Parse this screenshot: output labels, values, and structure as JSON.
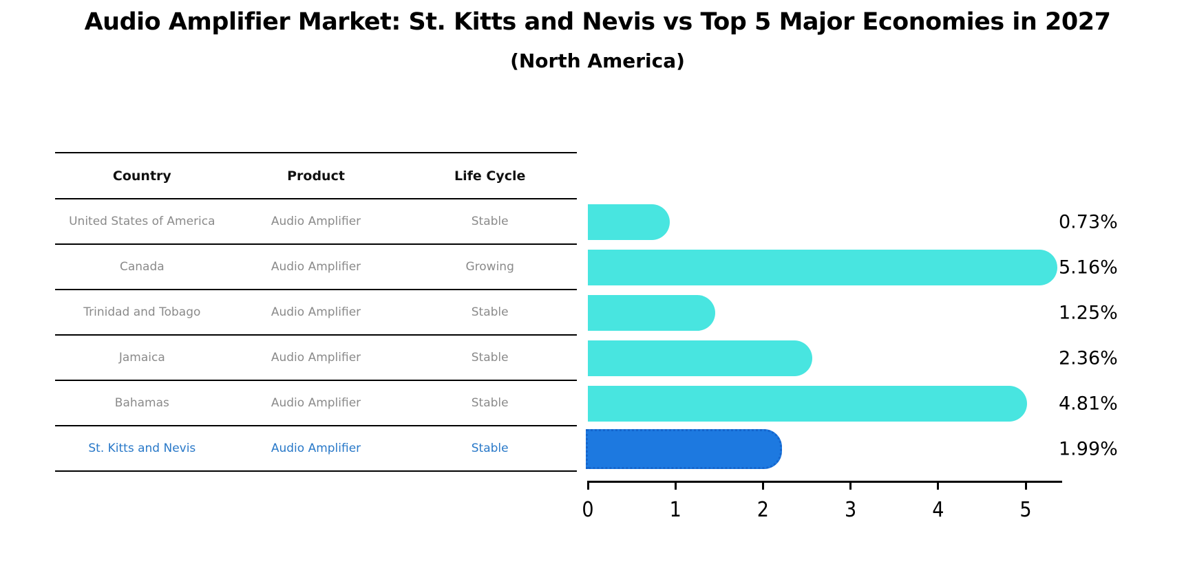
{
  "title": "Audio Amplifier Market: St. Kitts and Nevis vs Top 5 Major Economies in 2027",
  "subtitle": "(North America)",
  "table": {
    "headers": [
      "Country",
      "Product",
      "Life Cycle"
    ],
    "rows": [
      {
        "country": "United States of America",
        "product": "Audio Amplifier",
        "life_cycle": "Stable",
        "highlight": false
      },
      {
        "country": "Canada",
        "product": "Audio Amplifier",
        "life_cycle": "Growing",
        "highlight": false
      },
      {
        "country": "Trinidad and Tobago",
        "product": "Audio Amplifier",
        "life_cycle": "Stable",
        "highlight": false
      },
      {
        "country": "Jamaica",
        "product": "Audio Amplifier",
        "life_cycle": "Stable",
        "highlight": false
      },
      {
        "country": "Bahamas",
        "product": "Audio Amplifier",
        "life_cycle": "Stable",
        "highlight": false
      },
      {
        "country": "St. Kitts and Nevis",
        "product": "Audio Amplifier",
        "life_cycle": "Stable",
        "highlight": true
      }
    ]
  },
  "chart_data": {
    "type": "bar",
    "orientation": "horizontal",
    "title": "Audio Amplifier Market: St. Kitts and Nevis vs Top 5 Major Economies in 2027 (North America)",
    "categories": [
      "United States of America",
      "Canada",
      "Trinidad and Tobago",
      "Jamaica",
      "Bahamas",
      "St. Kitts and Nevis"
    ],
    "values": [
      0.73,
      5.16,
      1.25,
      2.36,
      4.81,
      1.99
    ],
    "value_labels": [
      "0.73%",
      "5.16%",
      "1.25%",
      "2.36%",
      "4.81%",
      "1.99%"
    ],
    "xlabel": "",
    "ylabel": "",
    "xlim": [
      0,
      5.45
    ],
    "xticks": [
      0,
      1,
      2,
      3,
      4,
      5
    ],
    "grid": false,
    "legend": false,
    "highlight_index": 5,
    "bar_color": "#48e5e0",
    "highlight_color": "#1d79e0",
    "highlight_edge_color": "#1565cc",
    "highlight_text_color": "#2878c8"
  }
}
